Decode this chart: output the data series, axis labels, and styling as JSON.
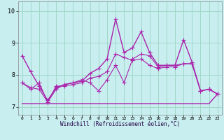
{
  "xlabel": "Windchill (Refroidissement éolien,°C)",
  "bg_color": "#c8eef0",
  "grid_color": "#a0d8c8",
  "line_color": "#aa22aa",
  "xlim": [
    -0.5,
    23.5
  ],
  "ylim": [
    6.75,
    10.3
  ],
  "yticks": [
    7,
    8,
    9,
    10
  ],
  "xticks": [
    0,
    1,
    2,
    3,
    4,
    5,
    6,
    7,
    8,
    9,
    10,
    11,
    12,
    13,
    14,
    15,
    16,
    17,
    18,
    19,
    20,
    21,
    22,
    23
  ],
  "series": [
    [
      8.6,
      8.1,
      7.65,
      7.2,
      7.6,
      7.7,
      7.75,
      7.8,
      8.05,
      8.2,
      8.5,
      9.75,
      8.7,
      8.85,
      9.35,
      8.7,
      8.3,
      8.3,
      8.3,
      9.1,
      8.4,
      7.5,
      7.55,
      7.4
    ],
    [
      7.75,
      7.6,
      7.55,
      7.15,
      7.65,
      7.65,
      7.7,
      7.75,
      7.9,
      7.95,
      8.1,
      8.65,
      8.55,
      8.45,
      8.5,
      8.3,
      8.2,
      8.25,
      8.25,
      8.35,
      8.35,
      7.5,
      7.55,
      7.4
    ],
    [
      7.75,
      7.55,
      7.75,
      7.15,
      7.55,
      7.7,
      7.75,
      7.85,
      7.75,
      7.5,
      7.85,
      8.3,
      7.75,
      8.5,
      8.65,
      8.6,
      8.25,
      8.3,
      8.3,
      8.35,
      8.35,
      7.5,
      7.55,
      7.4
    ],
    [
      7.1,
      7.1,
      7.1,
      7.1,
      7.1,
      7.1,
      7.1,
      7.1,
      7.1,
      7.1,
      7.1,
      7.1,
      7.1,
      7.1,
      7.1,
      7.1,
      7.1,
      7.1,
      7.1,
      7.1,
      7.1,
      7.1,
      7.1,
      7.4
    ]
  ],
  "series_markers": [
    "+",
    "+",
    "+",
    null
  ],
  "series_lw": [
    1.0,
    0.8,
    0.8,
    1.0
  ],
  "series_ms": [
    5,
    4,
    4,
    0
  ]
}
